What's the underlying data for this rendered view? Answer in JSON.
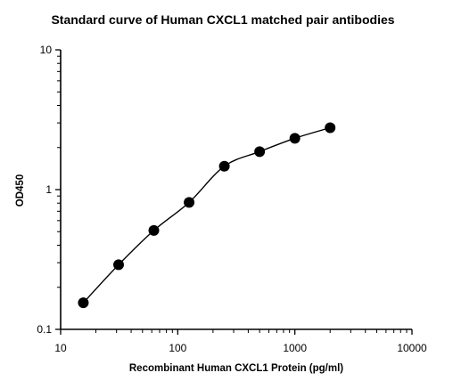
{
  "chart_data": {
    "type": "scatter",
    "title": "Standard curve of Human CXCL1 matched pair antibodies",
    "xlabel": "Recombinant Human CXCL1 Protein (pg/ml)",
    "ylabel": "OD450",
    "x_scale": "log",
    "y_scale": "log",
    "xlim": [
      10,
      10000
    ],
    "ylim": [
      0.1,
      10
    ],
    "x_ticks": [
      10,
      100,
      1000,
      10000
    ],
    "x_tick_labels": [
      "10",
      "100",
      "1000",
      "10000"
    ],
    "y_ticks": [
      0.1,
      1,
      10
    ],
    "y_tick_labels": [
      "0.1",
      "1",
      "10"
    ],
    "grid": false,
    "series": [
      {
        "x": [
          15.625,
          31.25,
          62.5,
          125,
          250,
          500,
          1000,
          2000
        ],
        "y": [
          0.155,
          0.29,
          0.51,
          0.81,
          1.47,
          1.87,
          2.33,
          2.77
        ],
        "fit": "four-parameter logistic curve"
      }
    ]
  }
}
